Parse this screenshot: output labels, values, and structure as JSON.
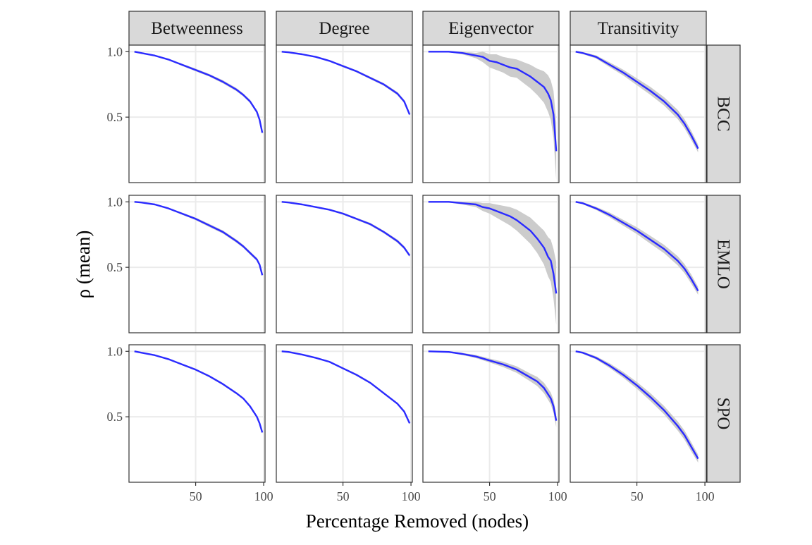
{
  "chart_data": {
    "type": "line",
    "xlabel": "Percentage Removed (nodes)",
    "ylabel": "ρ (mean)",
    "xlim": [
      1,
      101
    ],
    "ylim": [
      0,
      1.05
    ],
    "x_ticks": [
      50,
      100
    ],
    "x_tick_labels": [
      "50",
      "100"
    ],
    "y_ticks": [
      1.0,
      0.5
    ],
    "y_tick_labels": [
      "1.0",
      "0.5"
    ],
    "grid": true,
    "facet_columns": [
      "Betweenness",
      "Degree",
      "Eigenvector",
      "Transitivity"
    ],
    "facet_rows": [
      "BCC",
      "EMLO",
      "SPO"
    ],
    "colors": {
      "line": "#2b2bff",
      "band": "#cccccc",
      "panel_border": "#333333",
      "strip_fill": "#d9d9d9",
      "grid": "#ebebeb"
    },
    "panels": [
      {
        "row": "BCC",
        "col": "Betweenness",
        "x": [
          5,
          10,
          20,
          30,
          40,
          50,
          60,
          70,
          80,
          85,
          90,
          95,
          97,
          99
        ],
        "y": [
          1.0,
          0.99,
          0.97,
          0.94,
          0.9,
          0.86,
          0.82,
          0.77,
          0.71,
          0.67,
          0.62,
          0.54,
          0.48,
          0.38
        ],
        "band": [
          0.005,
          0.005,
          0.005,
          0.006,
          0.008,
          0.01,
          0.01,
          0.012,
          0.012,
          0.012,
          0.012,
          0.012,
          0.012,
          0.01
        ]
      },
      {
        "row": "BCC",
        "col": "Degree",
        "x": [
          5,
          10,
          20,
          30,
          40,
          50,
          60,
          70,
          80,
          90,
          95,
          99
        ],
        "y": [
          1.0,
          0.995,
          0.98,
          0.96,
          0.93,
          0.89,
          0.85,
          0.8,
          0.75,
          0.68,
          0.62,
          0.52
        ],
        "band": [
          0.003,
          0.003,
          0.004,
          0.005,
          0.006,
          0.008,
          0.008,
          0.01,
          0.01,
          0.012,
          0.012,
          0.012
        ]
      },
      {
        "row": "BCC",
        "col": "Eigenvector",
        "x": [
          5,
          20,
          30,
          40,
          45,
          50,
          55,
          60,
          65,
          70,
          75,
          80,
          85,
          90,
          93,
          95,
          97,
          99
        ],
        "y": [
          1.0,
          1.0,
          0.99,
          0.97,
          0.96,
          0.93,
          0.92,
          0.9,
          0.88,
          0.87,
          0.84,
          0.81,
          0.77,
          0.73,
          0.68,
          0.63,
          0.52,
          0.24
        ],
        "band": [
          0.003,
          0.005,
          0.01,
          0.02,
          0.04,
          0.05,
          0.06,
          0.06,
          0.07,
          0.07,
          0.08,
          0.09,
          0.1,
          0.12,
          0.14,
          0.15,
          0.18,
          0.22
        ]
      },
      {
        "row": "BCC",
        "col": "Transitivity",
        "x": [
          5,
          10,
          20,
          30,
          40,
          50,
          60,
          70,
          80,
          85,
          90,
          95
        ],
        "y": [
          1.0,
          0.99,
          0.96,
          0.9,
          0.84,
          0.77,
          0.7,
          0.62,
          0.52,
          0.45,
          0.36,
          0.26
        ],
        "band": [
          0.005,
          0.008,
          0.012,
          0.018,
          0.022,
          0.026,
          0.03,
          0.032,
          0.035,
          0.035,
          0.035,
          0.03
        ]
      },
      {
        "row": "EMLO",
        "col": "Betweenness",
        "x": [
          5,
          10,
          20,
          30,
          40,
          50,
          60,
          70,
          80,
          85,
          90,
          95,
          97,
          99
        ],
        "y": [
          1.0,
          0.995,
          0.98,
          0.95,
          0.91,
          0.87,
          0.82,
          0.77,
          0.7,
          0.66,
          0.61,
          0.56,
          0.52,
          0.44
        ],
        "band": [
          0.004,
          0.004,
          0.005,
          0.006,
          0.008,
          0.01,
          0.012,
          0.012,
          0.012,
          0.012,
          0.012,
          0.012,
          0.012,
          0.01
        ]
      },
      {
        "row": "EMLO",
        "col": "Degree",
        "x": [
          5,
          10,
          20,
          30,
          40,
          50,
          60,
          70,
          80,
          90,
          95,
          99
        ],
        "y": [
          1.0,
          0.995,
          0.98,
          0.96,
          0.94,
          0.91,
          0.87,
          0.83,
          0.77,
          0.7,
          0.65,
          0.59
        ],
        "band": [
          0.003,
          0.003,
          0.004,
          0.005,
          0.006,
          0.008,
          0.008,
          0.01,
          0.01,
          0.012,
          0.012,
          0.012
        ]
      },
      {
        "row": "EMLO",
        "col": "Eigenvector",
        "x": [
          5,
          20,
          30,
          40,
          45,
          50,
          55,
          60,
          65,
          70,
          75,
          80,
          85,
          90,
          93,
          95,
          97,
          99
        ],
        "y": [
          1.0,
          1.0,
          0.99,
          0.98,
          0.96,
          0.95,
          0.93,
          0.91,
          0.89,
          0.86,
          0.82,
          0.78,
          0.72,
          0.65,
          0.58,
          0.55,
          0.45,
          0.3
        ],
        "band": [
          0.003,
          0.005,
          0.01,
          0.02,
          0.03,
          0.04,
          0.05,
          0.06,
          0.07,
          0.08,
          0.09,
          0.1,
          0.11,
          0.13,
          0.15,
          0.16,
          0.19,
          0.24
        ]
      },
      {
        "row": "EMLO",
        "col": "Transitivity",
        "x": [
          5,
          10,
          20,
          30,
          40,
          50,
          60,
          70,
          80,
          85,
          90,
          95
        ],
        "y": [
          1.0,
          0.99,
          0.95,
          0.9,
          0.84,
          0.78,
          0.71,
          0.64,
          0.55,
          0.49,
          0.41,
          0.32
        ],
        "band": [
          0.005,
          0.008,
          0.012,
          0.018,
          0.022,
          0.026,
          0.03,
          0.032,
          0.035,
          0.035,
          0.035,
          0.03
        ]
      },
      {
        "row": "SPO",
        "col": "Betweenness",
        "x": [
          5,
          10,
          20,
          30,
          40,
          50,
          60,
          70,
          80,
          85,
          90,
          95,
          97,
          99
        ],
        "y": [
          1.0,
          0.99,
          0.97,
          0.94,
          0.9,
          0.86,
          0.81,
          0.75,
          0.68,
          0.64,
          0.58,
          0.5,
          0.45,
          0.38
        ],
        "band": [
          0.003,
          0.003,
          0.004,
          0.005,
          0.006,
          0.007,
          0.008,
          0.008,
          0.008,
          0.008,
          0.008,
          0.008,
          0.008,
          0.008
        ]
      },
      {
        "row": "SPO",
        "col": "Degree",
        "x": [
          5,
          10,
          20,
          30,
          40,
          50,
          60,
          70,
          80,
          90,
          95,
          99
        ],
        "y": [
          1.0,
          0.995,
          0.975,
          0.95,
          0.92,
          0.87,
          0.82,
          0.76,
          0.68,
          0.6,
          0.54,
          0.45
        ],
        "band": [
          0.003,
          0.003,
          0.004,
          0.005,
          0.006,
          0.007,
          0.008,
          0.008,
          0.008,
          0.008,
          0.008,
          0.008
        ]
      },
      {
        "row": "SPO",
        "col": "Eigenvector",
        "x": [
          5,
          20,
          30,
          40,
          50,
          60,
          70,
          80,
          85,
          90,
          95,
          97,
          99
        ],
        "y": [
          1.0,
          0.995,
          0.98,
          0.96,
          0.93,
          0.9,
          0.86,
          0.8,
          0.77,
          0.72,
          0.64,
          0.58,
          0.47
        ],
        "band": [
          0.003,
          0.005,
          0.008,
          0.012,
          0.015,
          0.02,
          0.025,
          0.03,
          0.035,
          0.04,
          0.045,
          0.05,
          0.05
        ]
      },
      {
        "row": "SPO",
        "col": "Transitivity",
        "x": [
          5,
          10,
          20,
          30,
          40,
          50,
          60,
          70,
          80,
          85,
          90,
          95
        ],
        "y": [
          1.0,
          0.99,
          0.95,
          0.89,
          0.82,
          0.74,
          0.65,
          0.55,
          0.43,
          0.36,
          0.27,
          0.18
        ],
        "band": [
          0.005,
          0.008,
          0.012,
          0.018,
          0.022,
          0.026,
          0.03,
          0.032,
          0.035,
          0.035,
          0.035,
          0.03
        ]
      }
    ]
  }
}
